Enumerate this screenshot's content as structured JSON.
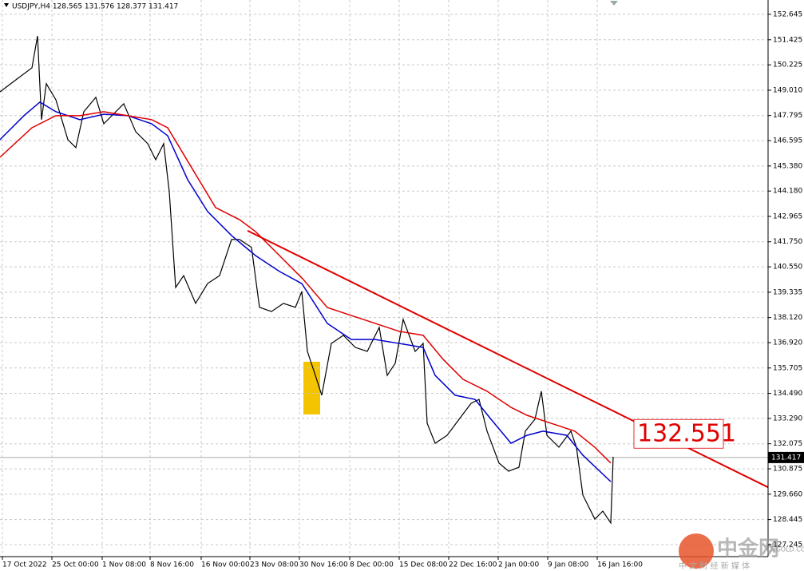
{
  "chart_data": {
    "type": "line",
    "title": "USDJPY,H4  128.565 131.576 128.377 131.417",
    "xlim": [
      0,
      962
    ],
    "ylim": [
      126.67,
      153.33
    ],
    "grid": true,
    "xticks": [
      {
        "value": 3,
        "label": "17 Oct 2022"
      },
      {
        "value": 65,
        "label": "25 Oct 00:00"
      },
      {
        "value": 128,
        "label": "1 Nov 08:00"
      },
      {
        "value": 188,
        "label": "8 Nov 16:00"
      },
      {
        "value": 252,
        "label": "16 Nov 00:00"
      },
      {
        "value": 313,
        "label": "23 Nov 08:00"
      },
      {
        "value": 375,
        "label": "30 Nov 16:00"
      },
      {
        "value": 438,
        "label": "8 Dec 00:00"
      },
      {
        "value": 500,
        "label": "15 Dec 08:00"
      },
      {
        "value": 562,
        "label": "22 Dec 16:00"
      },
      {
        "value": 624,
        "label": "2 Jan 00:00"
      },
      {
        "value": 686,
        "label": "9 Jan 08:00"
      },
      {
        "value": 748,
        "label": "16 Jan 16:00"
      }
    ],
    "yticks": [
      152.645,
      151.425,
      150.225,
      {
        "value": 149.01,
        "label": "149.010"
      },
      147.795,
      146.595,
      {
        "value": 145.38,
        "label": "145.380"
      },
      {
        "value": 144.18,
        "label": "144.180"
      },
      142.965,
      {
        "value": 141.75,
        "label": "141.750"
      },
      {
        "value": 140.55,
        "label": "140.550"
      },
      139.335,
      {
        "value": 138.12,
        "label": "138.120"
      },
      {
        "value": 136.92,
        "label": "136.920"
      },
      135.705,
      {
        "value": 134.49,
        "label": "134.490"
      },
      {
        "value": 133.29,
        "label": "133.290"
      },
      132.075,
      130.875,
      {
        "value": 129.66,
        "label": "129.660"
      },
      128.445,
      127.245
    ],
    "series": [
      {
        "color": "#000000",
        "x": [
          0,
          20,
          40,
          47,
          52,
          58,
          70,
          85,
          95,
          105,
          120,
          130,
          145,
          155,
          170,
          185,
          195,
          205,
          212,
          220,
          230,
          245,
          260,
          275,
          290,
          300,
          315,
          325,
          340,
          355,
          370,
          378,
          385,
          395,
          403,
          415,
          430,
          445,
          460,
          475,
          485,
          495,
          505,
          520,
          530,
          535,
          545,
          560,
          575,
          590,
          600,
          610,
          625,
          637,
          650,
          658,
          670,
          678,
          685,
          700,
          715,
          722,
          730,
          745,
          755,
          765,
          768
        ],
        "values": [
          148.93,
          149.51,
          150.08,
          151.61,
          147.6,
          149.32,
          148.55,
          146.64,
          146.26,
          147.98,
          148.67,
          147.4,
          147.98,
          148.36,
          147.02,
          146.45,
          145.68,
          146.45,
          144.15,
          139.56,
          140.13,
          138.8,
          139.75,
          140.13,
          141.86,
          141.86,
          141.48,
          138.61,
          138.41,
          138.8,
          138.61,
          139.37,
          136.5,
          135.35,
          134.4,
          136.88,
          137.27,
          136.69,
          136.5,
          137.65,
          135.35,
          135.93,
          138.03,
          136.5,
          136.88,
          133.06,
          132.1,
          132.48,
          133.25,
          134.01,
          134.2,
          132.68,
          131.15,
          130.76,
          130.95,
          132.68,
          133.25,
          134.59,
          132.48,
          131.91,
          132.68,
          131.91,
          129.62,
          128.47,
          128.85,
          128.28,
          131.45
        ]
      },
      {
        "color": "#0000cc",
        "x": [
          0,
          30,
          50,
          70,
          100,
          130,
          160,
          190,
          210,
          235,
          260,
          290,
          320,
          350,
          378,
          410,
          440,
          470,
          500,
          530,
          545,
          570,
          595,
          615,
          640,
          660,
          680,
          710,
          730,
          765
        ],
        "values": [
          146.64,
          147.79,
          148.44,
          147.98,
          147.6,
          147.86,
          147.79,
          147.4,
          146.83,
          144.73,
          143.2,
          142.05,
          141.09,
          140.33,
          139.75,
          137.84,
          137.07,
          137.07,
          136.88,
          136.69,
          135.35,
          134.4,
          134.2,
          133.25,
          132.1,
          132.48,
          132.68,
          132.48,
          131.53,
          130.26
        ]
      },
      {
        "color": "#e00000",
        "x": [
          0,
          40,
          70,
          100,
          130,
          160,
          190,
          210,
          240,
          270,
          300,
          320,
          350,
          380,
          410,
          440,
          470,
          500,
          530,
          555,
          580,
          610,
          640,
          660,
          690,
          720,
          745,
          765
        ],
        "values": [
          145.8,
          147.21,
          147.79,
          147.79,
          147.98,
          147.79,
          147.6,
          147.21,
          145.3,
          143.39,
          142.81,
          142.24,
          141.09,
          139.94,
          138.6,
          138.22,
          137.84,
          137.46,
          137.27,
          136.12,
          135.16,
          134.59,
          133.82,
          133.44,
          133.06,
          132.68,
          131.91,
          131.15
        ]
      }
    ],
    "trendline": {
      "color": "#e00000",
      "x": [
        310,
        962
      ],
      "values": [
        142.28,
        129.99
      ]
    },
    "current_price": 131.417,
    "annotation": {
      "text": 132.551,
      "color": "#e00000"
    },
    "watermark": {
      "brand": "中金网",
      "site": "CNGOLD.COM",
      "slogan": "中 文 财 经 新 媒 体"
    }
  }
}
